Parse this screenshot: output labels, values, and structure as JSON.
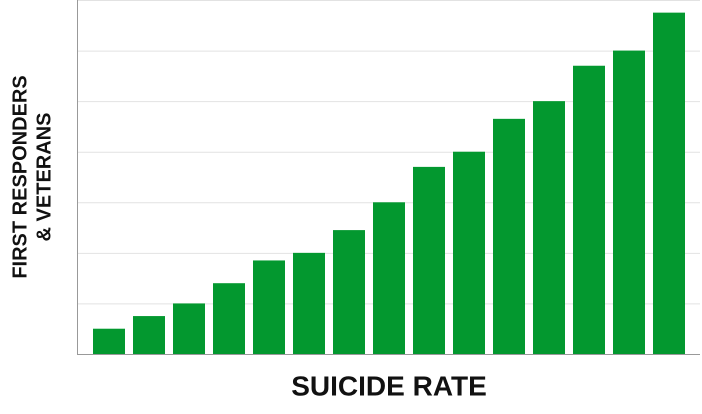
{
  "chart_data": {
    "type": "bar",
    "xlabel": "SUICIDE RATE",
    "ylabel": [
      "FIRST RESPONDERS",
      "& VETERANS"
    ],
    "categories": [
      null,
      null,
      null,
      null,
      null,
      null,
      null,
      null,
      null,
      null,
      null,
      null,
      null,
      null,
      null
    ],
    "values": [
      0.5,
      0.75,
      1.0,
      1.4,
      1.85,
      2.0,
      2.45,
      3.0,
      3.7,
      4.0,
      4.65,
      5.0,
      5.7,
      6.0,
      6.75
    ],
    "color": "#03982f",
    "ylim": [
      0,
      7
    ],
    "yticks": [
      0,
      1,
      2,
      3,
      4,
      5,
      6,
      7
    ],
    "grid": true
  }
}
